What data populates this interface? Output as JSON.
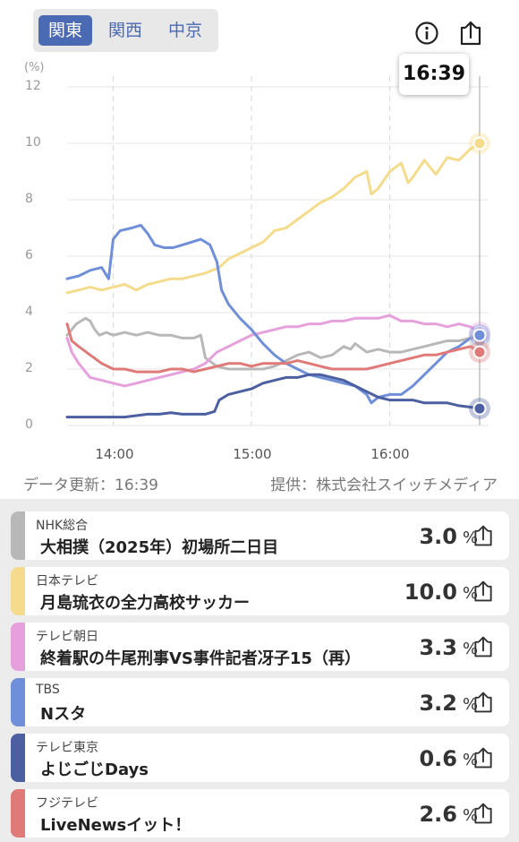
{
  "region_tabs": [
    {
      "label": "関東",
      "active": true
    },
    {
      "label": "関西",
      "active": false
    },
    {
      "label": "中京",
      "active": false
    }
  ],
  "icons": {
    "info": "info-icon",
    "share": "share-icon"
  },
  "tooltip_time": "16:39",
  "chart_data": {
    "type": "line",
    "ylabel": "(%)",
    "ylim": [
      0,
      12
    ],
    "yticks": [
      0,
      2,
      4,
      6,
      8,
      10,
      12
    ],
    "xticks": [
      "14:00",
      "15:00",
      "16:00"
    ],
    "xlim_minutes": [
      820,
      999
    ],
    "grid": true,
    "series": [
      {
        "name": "NHK総合",
        "color": "#b8b8b8",
        "points": [
          [
            820,
            3.2
          ],
          [
            822,
            3.4
          ],
          [
            824,
            3.6
          ],
          [
            826,
            3.7
          ],
          [
            828,
            3.8
          ],
          [
            830,
            3.7
          ],
          [
            832,
            3.4
          ],
          [
            834,
            3.2
          ],
          [
            837,
            3.3
          ],
          [
            840,
            3.2
          ],
          [
            845,
            3.3
          ],
          [
            850,
            3.2
          ],
          [
            855,
            3.3
          ],
          [
            860,
            3.2
          ],
          [
            865,
            3.2
          ],
          [
            870,
            3.1
          ],
          [
            875,
            3.1
          ],
          [
            878,
            3.2
          ],
          [
            880,
            2.4
          ],
          [
            885,
            2.1
          ],
          [
            890,
            2.0
          ],
          [
            895,
            2.0
          ],
          [
            900,
            2.0
          ],
          [
            905,
            2.0
          ],
          [
            910,
            2.1
          ],
          [
            915,
            2.3
          ],
          [
            920,
            2.5
          ],
          [
            925,
            2.6
          ],
          [
            930,
            2.4
          ],
          [
            935,
            2.5
          ],
          [
            940,
            2.8
          ],
          [
            943,
            2.7
          ],
          [
            945,
            2.9
          ],
          [
            950,
            2.6
          ],
          [
            955,
            2.7
          ],
          [
            960,
            2.6
          ],
          [
            965,
            2.6
          ],
          [
            970,
            2.7
          ],
          [
            975,
            2.8
          ],
          [
            980,
            2.9
          ],
          [
            985,
            3.0
          ],
          [
            990,
            3.0
          ],
          [
            995,
            3.1
          ],
          [
            999,
            3.0
          ]
        ]
      },
      {
        "name": "日本テレビ",
        "color": "#f5dc8c",
        "points": [
          [
            820,
            4.7
          ],
          [
            825,
            4.8
          ],
          [
            830,
            4.9
          ],
          [
            835,
            4.8
          ],
          [
            840,
            4.9
          ],
          [
            845,
            5.0
          ],
          [
            850,
            4.8
          ],
          [
            855,
            5.0
          ],
          [
            860,
            5.1
          ],
          [
            865,
            5.2
          ],
          [
            870,
            5.2
          ],
          [
            875,
            5.3
          ],
          [
            880,
            5.4
          ],
          [
            883,
            5.5
          ],
          [
            886,
            5.6
          ],
          [
            890,
            5.9
          ],
          [
            895,
            6.1
          ],
          [
            900,
            6.3
          ],
          [
            905,
            6.5
          ],
          [
            910,
            6.9
          ],
          [
            915,
            7.0
          ],
          [
            920,
            7.3
          ],
          [
            925,
            7.6
          ],
          [
            930,
            7.9
          ],
          [
            935,
            8.1
          ],
          [
            940,
            8.4
          ],
          [
            945,
            8.8
          ],
          [
            950,
            9.0
          ],
          [
            952,
            8.2
          ],
          [
            955,
            8.4
          ],
          [
            960,
            9.0
          ],
          [
            965,
            9.3
          ],
          [
            968,
            8.6
          ],
          [
            970,
            8.8
          ],
          [
            975,
            9.4
          ],
          [
            980,
            8.9
          ],
          [
            985,
            9.5
          ],
          [
            990,
            9.4
          ],
          [
            995,
            9.8
          ],
          [
            999,
            10.0
          ]
        ]
      },
      {
        "name": "テレビ朝日",
        "color": "#e6a0dc",
        "points": [
          [
            820,
            3.1
          ],
          [
            822,
            2.6
          ],
          [
            825,
            2.2
          ],
          [
            830,
            1.7
          ],
          [
            835,
            1.6
          ],
          [
            840,
            1.5
          ],
          [
            845,
            1.4
          ],
          [
            850,
            1.5
          ],
          [
            855,
            1.6
          ],
          [
            860,
            1.7
          ],
          [
            865,
            1.8
          ],
          [
            870,
            1.9
          ],
          [
            875,
            2.0
          ],
          [
            880,
            2.2
          ],
          [
            885,
            2.6
          ],
          [
            890,
            2.8
          ],
          [
            895,
            3.0
          ],
          [
            900,
            3.2
          ],
          [
            905,
            3.3
          ],
          [
            910,
            3.4
          ],
          [
            915,
            3.5
          ],
          [
            920,
            3.5
          ],
          [
            925,
            3.6
          ],
          [
            930,
            3.6
          ],
          [
            935,
            3.7
          ],
          [
            940,
            3.7
          ],
          [
            945,
            3.8
          ],
          [
            950,
            3.8
          ],
          [
            955,
            3.8
          ],
          [
            960,
            3.9
          ],
          [
            965,
            3.7
          ],
          [
            970,
            3.7
          ],
          [
            975,
            3.6
          ],
          [
            980,
            3.6
          ],
          [
            985,
            3.5
          ],
          [
            990,
            3.6
          ],
          [
            995,
            3.5
          ],
          [
            999,
            3.3
          ]
        ]
      },
      {
        "name": "TBS",
        "color": "#6f8fd8",
        "points": [
          [
            820,
            5.2
          ],
          [
            825,
            5.3
          ],
          [
            830,
            5.5
          ],
          [
            835,
            5.6
          ],
          [
            838,
            5.2
          ],
          [
            840,
            6.6
          ],
          [
            843,
            6.9
          ],
          [
            848,
            7.0
          ],
          [
            852,
            7.1
          ],
          [
            855,
            6.8
          ],
          [
            858,
            6.4
          ],
          [
            862,
            6.3
          ],
          [
            866,
            6.3
          ],
          [
            870,
            6.4
          ],
          [
            874,
            6.5
          ],
          [
            878,
            6.6
          ],
          [
            882,
            6.4
          ],
          [
            885,
            5.8
          ],
          [
            887,
            4.8
          ],
          [
            890,
            4.3
          ],
          [
            895,
            3.8
          ],
          [
            900,
            3.4
          ],
          [
            905,
            2.9
          ],
          [
            910,
            2.5
          ],
          [
            915,
            2.2
          ],
          [
            920,
            2.0
          ],
          [
            925,
            1.8
          ],
          [
            930,
            1.7
          ],
          [
            935,
            1.6
          ],
          [
            940,
            1.5
          ],
          [
            945,
            1.4
          ],
          [
            950,
            1.1
          ],
          [
            952,
            0.8
          ],
          [
            955,
            1.0
          ],
          [
            960,
            1.1
          ],
          [
            965,
            1.1
          ],
          [
            970,
            1.4
          ],
          [
            975,
            1.8
          ],
          [
            980,
            2.2
          ],
          [
            985,
            2.6
          ],
          [
            990,
            2.8
          ],
          [
            995,
            3.1
          ],
          [
            999,
            3.2
          ]
        ]
      },
      {
        "name": "テレビ東京",
        "color": "#4c5fa0",
        "points": [
          [
            820,
            0.3
          ],
          [
            825,
            0.3
          ],
          [
            830,
            0.3
          ],
          [
            835,
            0.3
          ],
          [
            840,
            0.3
          ],
          [
            845,
            0.3
          ],
          [
            850,
            0.35
          ],
          [
            855,
            0.4
          ],
          [
            860,
            0.4
          ],
          [
            865,
            0.45
          ],
          [
            870,
            0.4
          ],
          [
            875,
            0.4
          ],
          [
            880,
            0.4
          ],
          [
            884,
            0.5
          ],
          [
            886,
            0.9
          ],
          [
            890,
            1.1
          ],
          [
            895,
            1.2
          ],
          [
            900,
            1.3
          ],
          [
            905,
            1.5
          ],
          [
            910,
            1.6
          ],
          [
            915,
            1.7
          ],
          [
            920,
            1.7
          ],
          [
            925,
            1.8
          ],
          [
            930,
            1.8
          ],
          [
            935,
            1.7
          ],
          [
            940,
            1.6
          ],
          [
            945,
            1.4
          ],
          [
            950,
            1.2
          ],
          [
            955,
            1.0
          ],
          [
            960,
            0.9
          ],
          [
            965,
            0.9
          ],
          [
            970,
            0.9
          ],
          [
            975,
            0.8
          ],
          [
            980,
            0.8
          ],
          [
            985,
            0.8
          ],
          [
            990,
            0.7
          ],
          [
            995,
            0.65
          ],
          [
            999,
            0.6
          ]
        ]
      },
      {
        "name": "フジテレビ",
        "color": "#e07a78",
        "points": [
          [
            820,
            3.6
          ],
          [
            822,
            3.0
          ],
          [
            825,
            2.8
          ],
          [
            830,
            2.5
          ],
          [
            835,
            2.2
          ],
          [
            840,
            2.0
          ],
          [
            845,
            2.0
          ],
          [
            850,
            1.9
          ],
          [
            855,
            1.9
          ],
          [
            860,
            1.9
          ],
          [
            865,
            2.0
          ],
          [
            870,
            2.0
          ],
          [
            875,
            1.9
          ],
          [
            880,
            2.0
          ],
          [
            885,
            2.1
          ],
          [
            890,
            2.2
          ],
          [
            895,
            2.2
          ],
          [
            900,
            2.1
          ],
          [
            905,
            2.2
          ],
          [
            910,
            2.2
          ],
          [
            915,
            2.2
          ],
          [
            920,
            2.3
          ],
          [
            925,
            2.2
          ],
          [
            930,
            2.1
          ],
          [
            935,
            2.0
          ],
          [
            940,
            2.0
          ],
          [
            945,
            2.0
          ],
          [
            950,
            2.0
          ],
          [
            955,
            2.1
          ],
          [
            960,
            2.2
          ],
          [
            965,
            2.3
          ],
          [
            970,
            2.4
          ],
          [
            975,
            2.5
          ],
          [
            980,
            2.5
          ],
          [
            985,
            2.6
          ],
          [
            990,
            2.7
          ],
          [
            995,
            2.8
          ],
          [
            999,
            2.6
          ]
        ]
      }
    ]
  },
  "footer": {
    "updated": "データ更新：16:39",
    "provider": "提供：株式会社スイッチメディア"
  },
  "programs": [
    {
      "channel": "NHK総合",
      "title": "大相撲（2025年）初場所二日目",
      "value": "3.0",
      "unit": "%",
      "color": "#b8b8b8"
    },
    {
      "channel": "日本テレビ",
      "title": "月島琉衣の全力高校サッカー",
      "value": "10.0",
      "unit": "%",
      "color": "#f5dc8c"
    },
    {
      "channel": "テレビ朝日",
      "title": "終着駅の牛尾刑事VS事件記者冴子15（再）",
      "value": "3.3",
      "unit": "%",
      "color": "#e6a0dc"
    },
    {
      "channel": "TBS",
      "title": "Nスタ",
      "value": "3.2",
      "unit": "%",
      "color": "#6f8fd8"
    },
    {
      "channel": "テレビ東京",
      "title": "よじごじDays",
      "value": "0.6",
      "unit": "%",
      "color": "#4c5fa0"
    },
    {
      "channel": "フジテレビ",
      "title": "LiveNewsイット！",
      "value": "2.6",
      "unit": "%",
      "color": "#e07a78"
    }
  ]
}
